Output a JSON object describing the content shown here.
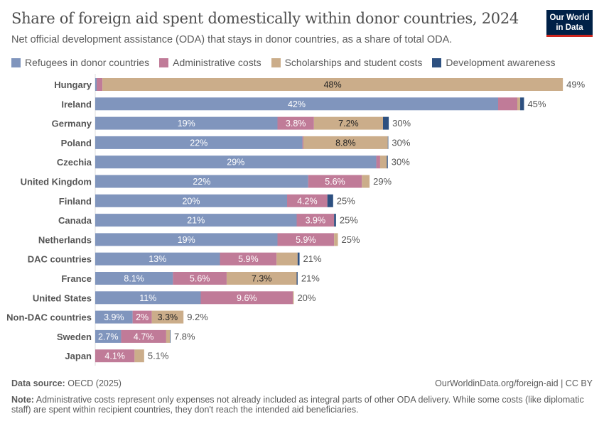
{
  "header": {
    "title": "Share of foreign aid spent domestically within donor countries, 2024",
    "subtitle": "Net official development assistance (ODA) that stays in donor countries, as a share of total ODA.",
    "logo": "Our World in Data"
  },
  "footer": {
    "source_label": "Data source:",
    "source": "OECD (2025)",
    "url": "OurWorldinData.org/foreign-aid | CC BY",
    "note_label": "Note:",
    "note": "Administrative costs represent only expenses not already included as integral parts of other ODA delivery. While some costs (like diplomatic staff) are spent within recipient countries, they don't reach the intended aid beneficiaries."
  },
  "chart_data": {
    "type": "bar",
    "orientation": "horizontal",
    "stacked": true,
    "title": "Share of foreign aid spent domestically within donor countries, 2024",
    "legend_position": "top",
    "grid": false,
    "unit": "%",
    "categories": [
      "Hungary",
      "Ireland",
      "Germany",
      "Poland",
      "Czechia",
      "United Kingdom",
      "Finland",
      "Canada",
      "Netherlands",
      "DAC countries",
      "France",
      "United States",
      "Non-DAC countries",
      "Sweden",
      "Japan"
    ],
    "totals_labels": [
      "49%",
      "45%",
      "30%",
      "30%",
      "30%",
      "29%",
      "25%",
      "25%",
      "25%",
      "21%",
      "21%",
      "20%",
      "9.2%",
      "7.8%",
      "5.1%"
    ],
    "series": [
      {
        "name": "Refugees in donor countries",
        "color": "#8095bd",
        "text_color": "#ffffff",
        "values": [
          0.15,
          42,
          19,
          21.6,
          29.3,
          22.2,
          20,
          21,
          19,
          13,
          8.1,
          11,
          3.9,
          2.7,
          0
        ],
        "labels": [
          "",
          "42%",
          "19%",
          "22%",
          "29%",
          "22%",
          "20%",
          "21%",
          "19%",
          "13%",
          "8.1%",
          "11%",
          "3.9%",
          "2.7%",
          ""
        ]
      },
      {
        "name": "Administrative costs",
        "color": "#c07b98",
        "text_color": "#ffffff",
        "values": [
          0.6,
          2.0,
          3.8,
          0.1,
          0.4,
          5.6,
          4.2,
          3.9,
          5.9,
          5.9,
          5.6,
          9.6,
          2,
          4.7,
          4.1
        ],
        "labels": [
          "",
          "",
          "3.8%",
          "",
          "",
          "5.6%",
          "4.2%",
          "3.9%",
          "5.9%",
          "5.9%",
          "5.6%",
          "9.6%",
          "2%",
          "4.7%",
          "4.1%"
        ]
      },
      {
        "name": "Scholarships and student costs",
        "color": "#cbad8a",
        "text_color": "#222222",
        "values": [
          48,
          0.3,
          7.2,
          8.8,
          0.7,
          0.8,
          0,
          0,
          0.4,
          2.2,
          7.3,
          0.1,
          3.3,
          0.4,
          1.0
        ],
        "labels": [
          "48%",
          "",
          "7.2%",
          "8.8%",
          "",
          "",
          "",
          "",
          "",
          "",
          "7.3%",
          "",
          "3.3%",
          "",
          ""
        ]
      },
      {
        "name": "Development awareness",
        "color": "#2d5080",
        "text_color": "#ffffff",
        "values": [
          0,
          0.4,
          0.6,
          0.05,
          0.1,
          0,
          0.6,
          0.2,
          0,
          0.2,
          0.1,
          0,
          0,
          0.05,
          0
        ],
        "labels": [
          "",
          "",
          "",
          "",
          "",
          "",
          "",
          "",
          "",
          "",
          "",
          "",
          "",
          "",
          ""
        ]
      }
    ]
  }
}
